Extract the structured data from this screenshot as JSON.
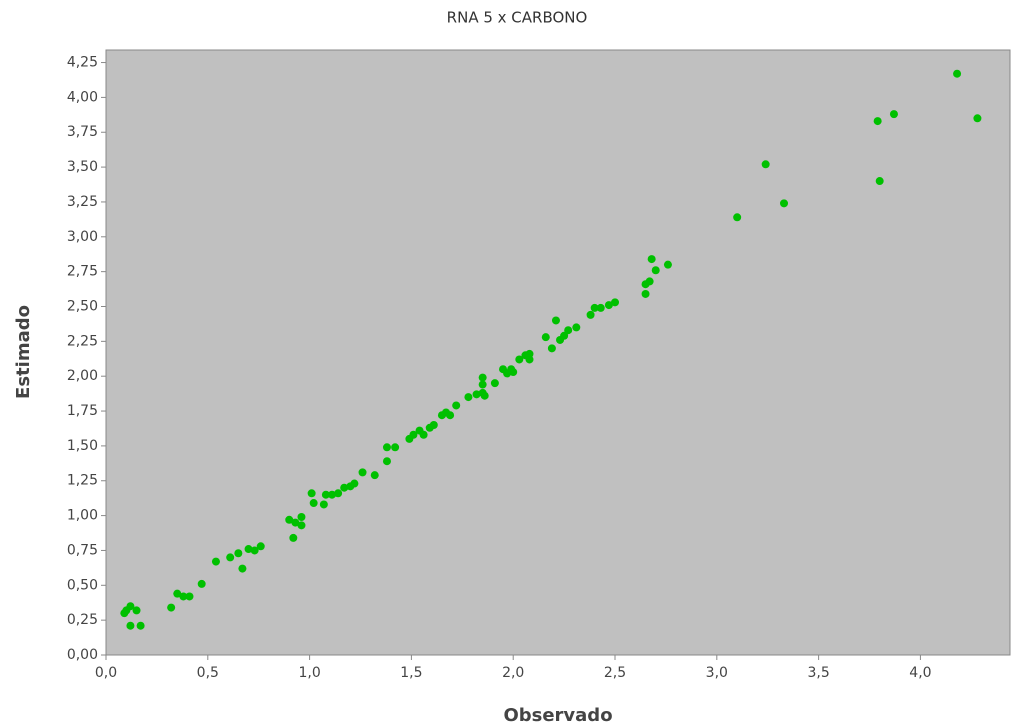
{
  "chart_data": {
    "type": "scatter",
    "title": "RNA 5 x CARBONO",
    "x_label": "Observado",
    "y_label": "Estimado",
    "color": "#00c000",
    "x": [
      0.1,
      0.12,
      0.15,
      0.09,
      0.12,
      0.17,
      0.32,
      0.35,
      0.38,
      0.41,
      0.47,
      0.54,
      0.61,
      0.65,
      0.67,
      0.7,
      0.73,
      0.76,
      0.9,
      0.92,
      0.93,
      0.96,
      0.96,
      1.01,
      1.02,
      1.07,
      1.08,
      1.11,
      1.14,
      1.17,
      1.2,
      1.22,
      1.26,
      1.32,
      1.38,
      1.38,
      1.42,
      1.49,
      1.51,
      1.54,
      1.56,
      1.59,
      1.61,
      1.65,
      1.67,
      1.69,
      1.72,
      1.78,
      1.82,
      1.85,
      1.85,
      1.85,
      1.86,
      1.91,
      1.95,
      1.97,
      1.99,
      2.0,
      2.03,
      2.06,
      2.08,
      2.08,
      2.16,
      2.19,
      2.21,
      2.23,
      2.25,
      2.27,
      2.31,
      2.38,
      2.4,
      2.43,
      2.47,
      2.5,
      2.65,
      2.65,
      2.67,
      2.68,
      2.7,
      2.76,
      3.1,
      3.24,
      3.33,
      3.79,
      3.8,
      3.87,
      4.18,
      4.28
    ],
    "values": [
      0.32,
      0.35,
      0.32,
      0.3,
      0.21,
      0.21,
      0.34,
      0.44,
      0.42,
      0.42,
      0.51,
      0.67,
      0.7,
      0.73,
      0.62,
      0.76,
      0.75,
      0.78,
      0.97,
      0.84,
      0.95,
      0.99,
      0.93,
      1.16,
      1.09,
      1.08,
      1.15,
      1.15,
      1.16,
      1.2,
      1.21,
      1.23,
      1.31,
      1.29,
      1.49,
      1.39,
      1.49,
      1.55,
      1.58,
      1.61,
      1.58,
      1.63,
      1.65,
      1.72,
      1.74,
      1.72,
      1.79,
      1.85,
      1.87,
      1.88,
      1.94,
      1.99,
      1.86,
      1.95,
      2.05,
      2.02,
      2.05,
      2.03,
      2.12,
      2.15,
      2.12,
      2.16,
      2.28,
      2.2,
      2.4,
      2.26,
      2.29,
      2.33,
      2.35,
      2.44,
      2.49,
      2.49,
      2.51,
      2.53,
      2.59,
      2.66,
      2.68,
      2.84,
      2.76,
      2.8,
      3.14,
      3.52,
      3.24,
      3.83,
      3.4,
      3.88,
      4.17,
      3.85
    ],
    "xlim": [
      0,
      4.44
    ],
    "ylim": [
      0,
      4.34
    ],
    "xticks": [
      {
        "value": 0,
        "label": "0,0"
      },
      {
        "value": 0.5,
        "label": "0,5"
      },
      {
        "value": 1,
        "label": "1,0"
      },
      {
        "value": 1.5,
        "label": "1,5"
      },
      {
        "value": 2,
        "label": "2,0"
      },
      {
        "value": 2.5,
        "label": "2,5"
      },
      {
        "value": 3,
        "label": "3,0"
      },
      {
        "value": 3.5,
        "label": "3,5"
      },
      {
        "value": 4,
        "label": "4,0"
      }
    ],
    "yticks": [
      {
        "value": 0,
        "label": "0,00"
      },
      {
        "value": 0.25,
        "label": "0,25"
      },
      {
        "value": 0.5,
        "label": "0,50"
      },
      {
        "value": 0.75,
        "label": "0,75"
      },
      {
        "value": 1,
        "label": "1,00"
      },
      {
        "value": 1.25,
        "label": "1,25"
      },
      {
        "value": 1.5,
        "label": "1,50"
      },
      {
        "value": 1.75,
        "label": "1,75"
      },
      {
        "value": 2,
        "label": "2,00"
      },
      {
        "value": 2.25,
        "label": "2,25"
      },
      {
        "value": 2.5,
        "label": "2,50"
      },
      {
        "value": 2.75,
        "label": "2,75"
      },
      {
        "value": 3,
        "label": "3,00"
      },
      {
        "value": 3.25,
        "label": "3,25"
      },
      {
        "value": 3.5,
        "label": "3,50"
      },
      {
        "value": 3.75,
        "label": "3,75"
      },
      {
        "value": 4,
        "label": "4,00"
      },
      {
        "value": 4.25,
        "label": "4,25"
      }
    ]
  }
}
